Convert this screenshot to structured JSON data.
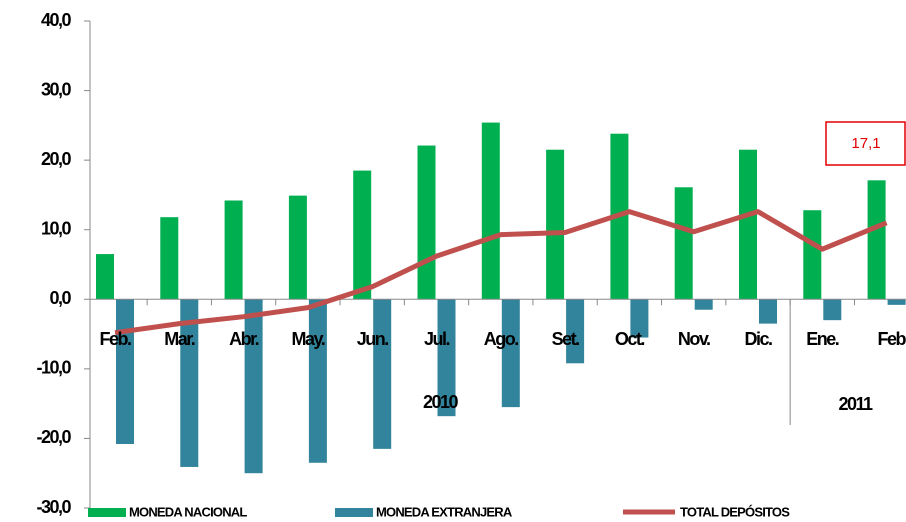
{
  "chart_data": {
    "type": "bar-line",
    "categories": [
      "Feb.",
      "Mar.",
      "Abr.",
      "May.",
      "Jun.",
      "Jul.",
      "Ago.",
      "Set.",
      "Oct.",
      "Nov.",
      "Dic.",
      "Ene.",
      "Feb"
    ],
    "groups": [
      "2010",
      "2011"
    ],
    "series": [
      {
        "name": "MONEDA NACIONAL",
        "color": "#00b050",
        "kind": "bar",
        "values": [
          6.5,
          11.8,
          14.2,
          14.9,
          18.5,
          22.1,
          25.4,
          21.5,
          23.8,
          16.1,
          21.5,
          12.8,
          17.1
        ]
      },
      {
        "name": "MONEDA EXTRANJERA",
        "color": "#31849b",
        "kind": "bar",
        "values": [
          -20.8,
          -24.1,
          -25.0,
          -23.5,
          -21.5,
          -16.8,
          -15.5,
          -9.2,
          -5.5,
          -1.5,
          -3.5,
          -3.0,
          -0.8
        ]
      },
      {
        "name": "TOTAL  DEPÓSITOS",
        "color": "#c0504d",
        "kind": "line",
        "values": [
          -4.8,
          -3.5,
          -2.5,
          -1.2,
          1.8,
          6.2,
          9.3,
          9.6,
          12.6,
          9.7,
          12.6,
          7.2,
          11.0
        ]
      }
    ],
    "annotation": "17,1",
    "ylim": [
      -30,
      40
    ],
    "yticks": [
      {
        "value": -30,
        "label": "-30,0"
      },
      {
        "value": -20,
        "label": "-20,0"
      },
      {
        "value": -10,
        "label": "-10,0"
      },
      {
        "value": 0,
        "label": "0,0"
      },
      {
        "value": 10,
        "label": "10,0"
      },
      {
        "value": 20,
        "label": "20,0"
      },
      {
        "value": 30,
        "label": "30,0"
      },
      {
        "value": 40,
        "label": "40,0"
      }
    ]
  }
}
